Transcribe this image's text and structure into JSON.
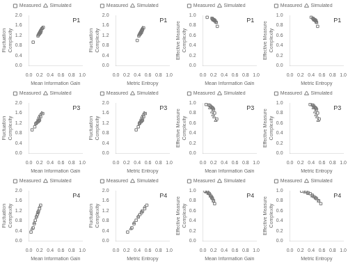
{
  "chart_data": [
    {
      "type": "scatter",
      "xlabel": "Mean Information Gain",
      "ylabel": "Fluctuation\nComplexity",
      "annotations": [
        "P1"
      ],
      "legend": "top",
      "grid": false,
      "xlim": [
        0,
        1
      ],
      "xticks": [
        {
          "value": 0,
          "label": "0.0"
        },
        0.2,
        0.4,
        0.6,
        0.8,
        {
          "value": 1,
          "label": "1.0"
        }
      ],
      "ylim": [
        0,
        2
      ],
      "yticks": [
        {
          "value": 0,
          "label": "0.0"
        },
        0.4,
        0.8,
        1.2,
        1.6,
        {
          "value": 2,
          "label": "2.0"
        }
      ],
      "series": [
        {
          "name": "Measured",
          "color": "#777777",
          "marker": "square",
          "x": [
            0.08,
            0.17,
            0.18,
            0.19,
            0.2,
            0.21,
            0.22,
            0.23,
            0.25,
            0.27
          ],
          "values": [
            0.93,
            1.18,
            1.22,
            1.25,
            1.27,
            1.3,
            1.32,
            1.38,
            1.48,
            1.52
          ]
        },
        {
          "name": "Simulated",
          "color": "#777777",
          "marker": "triangle",
          "x": [
            0.19,
            0.2,
            0.21,
            0.22,
            0.23,
            0.25
          ],
          "values": [
            1.3,
            1.35,
            1.38,
            1.42,
            1.45,
            1.5
          ]
        }
      ]
    },
    {
      "type": "scatter",
      "xlabel": "Metric Entropy",
      "ylabel": "Fluctuation\nComplexity",
      "annotations": [
        "P1"
      ],
      "legend": "top",
      "grid": false,
      "xlim": [
        0,
        1
      ],
      "xticks": [
        {
          "value": 0,
          "label": "0.0"
        },
        0.2,
        0.4,
        0.6,
        0.8,
        {
          "value": 1,
          "label": "1.0"
        }
      ],
      "ylim": [
        0,
        2
      ],
      "yticks": [
        {
          "value": 0,
          "label": "0.0"
        },
        0.4,
        0.8,
        1.2,
        1.6,
        {
          "value": 2,
          "label": "2.0"
        }
      ],
      "series": [
        {
          "name": "Measured",
          "color": "#777777",
          "marker": "square",
          "x": [
            0.4,
            0.43,
            0.44,
            0.45,
            0.46,
            0.47,
            0.48,
            0.49,
            0.5,
            0.52
          ],
          "values": [
            1.0,
            1.18,
            1.22,
            1.25,
            1.27,
            1.3,
            1.32,
            1.38,
            1.43,
            1.5
          ]
        },
        {
          "name": "Simulated",
          "color": "#777777",
          "marker": "triangle",
          "x": [
            0.45,
            0.46,
            0.47,
            0.48,
            0.49,
            0.5
          ],
          "values": [
            1.3,
            1.35,
            1.38,
            1.42,
            1.45,
            1.5
          ]
        }
      ]
    },
    {
      "type": "scatter",
      "xlabel": "Mean Information Gain",
      "ylabel": "Effective Measure\nComplexity",
      "annotations": [
        "P1"
      ],
      "legend": "top",
      "grid": false,
      "xlim": [
        0,
        1
      ],
      "xticks": [
        {
          "value": 0,
          "label": "0.0"
        },
        0.2,
        0.4,
        0.6,
        0.8,
        {
          "value": 1,
          "label": "1.0"
        }
      ],
      "ylim": [
        0,
        1
      ],
      "yticks": [
        {
          "value": 0,
          "label": "0.0"
        },
        0.2,
        0.4,
        0.6,
        0.8,
        {
          "value": 1,
          "label": "1.0"
        }
      ],
      "series": [
        {
          "name": "Measured",
          "color": "#777777",
          "marker": "square",
          "x": [
            0.08,
            0.17,
            0.18,
            0.19,
            0.2,
            0.21,
            0.22,
            0.23,
            0.25,
            0.27
          ],
          "values": [
            0.96,
            0.94,
            0.93,
            0.92,
            0.91,
            0.91,
            0.9,
            0.89,
            0.86,
            0.78
          ]
        },
        {
          "name": "Simulated",
          "color": "#777777",
          "marker": "triangle",
          "x": [
            0.19,
            0.2,
            0.21,
            0.22,
            0.23,
            0.25
          ],
          "values": [
            0.91,
            0.9,
            0.9,
            0.89,
            0.88,
            0.86
          ]
        }
      ]
    },
    {
      "type": "scatter",
      "xlabel": "Metric Entropy",
      "ylabel": "Effective Measure\nComplexity",
      "annotations": [
        "P1"
      ],
      "legend": "top",
      "grid": false,
      "xlim": [
        0,
        1
      ],
      "xticks": [
        {
          "value": 0,
          "label": "0.0"
        },
        0.2,
        0.4,
        0.6,
        0.8,
        {
          "value": 1,
          "label": "1.0"
        }
      ],
      "ylim": [
        0,
        1
      ],
      "yticks": [
        {
          "value": 0,
          "label": "0.0"
        },
        0.2,
        0.4,
        0.6,
        0.8,
        {
          "value": 1,
          "label": "1.0"
        }
      ],
      "series": [
        {
          "name": "Measured",
          "color": "#777777",
          "marker": "square",
          "x": [
            0.4,
            0.43,
            0.44,
            0.45,
            0.46,
            0.47,
            0.48,
            0.49,
            0.5,
            0.52
          ],
          "values": [
            0.96,
            0.94,
            0.93,
            0.92,
            0.91,
            0.91,
            0.9,
            0.89,
            0.86,
            0.78
          ]
        },
        {
          "name": "Simulated",
          "color": "#777777",
          "marker": "triangle",
          "x": [
            0.45,
            0.46,
            0.47,
            0.48,
            0.49,
            0.5
          ],
          "values": [
            0.91,
            0.9,
            0.9,
            0.89,
            0.88,
            0.86
          ]
        }
      ]
    },
    {
      "type": "scatter",
      "xlabel": "Mean Information Gain",
      "ylabel": "Fluctuation\nComplexity",
      "annotations": [
        "P3"
      ],
      "legend": "top",
      "grid": false,
      "xlim": [
        0,
        1
      ],
      "xticks": [
        {
          "value": 0,
          "label": "0.0"
        },
        0.2,
        0.4,
        0.6,
        0.8,
        {
          "value": 1,
          "label": "1.0"
        }
      ],
      "ylim": [
        0,
        2
      ],
      "yticks": [
        {
          "value": 0,
          "label": "0.0"
        },
        0.4,
        0.8,
        1.2,
        1.6,
        {
          "value": 2,
          "label": "2.0"
        }
      ],
      "series": [
        {
          "name": "Measured",
          "color": "#777777",
          "marker": "square",
          "x": [
            0.06,
            0.11,
            0.13,
            0.15,
            0.17,
            0.18,
            0.19,
            0.2,
            0.22,
            0.26
          ],
          "values": [
            0.93,
            1.05,
            1.18,
            1.22,
            1.25,
            1.28,
            1.3,
            1.32,
            1.45,
            1.58
          ]
        },
        {
          "name": "Simulated",
          "color": "#777777",
          "marker": "triangle",
          "x": [
            0.13,
            0.17,
            0.19,
            0.21,
            0.24
          ],
          "values": [
            1.18,
            1.35,
            1.45,
            1.52,
            1.6
          ]
        }
      ]
    },
    {
      "type": "scatter",
      "xlabel": "Metric Entropy",
      "ylabel": "Fluctuation\nComplexity",
      "annotations": [
        "P3"
      ],
      "legend": "top",
      "grid": false,
      "xlim": [
        0,
        1
      ],
      "xticks": [
        {
          "value": 0,
          "label": "0.0"
        },
        0.2,
        0.4,
        0.6,
        0.8,
        {
          "value": 1,
          "label": "1.0"
        }
      ],
      "ylim": [
        0,
        2
      ],
      "yticks": [
        {
          "value": 0,
          "label": "0.0"
        },
        0.4,
        0.8,
        1.2,
        1.6,
        {
          "value": 2,
          "label": "2.0"
        }
      ],
      "series": [
        {
          "name": "Measured",
          "color": "#777777",
          "marker": "square",
          "x": [
            0.38,
            0.42,
            0.44,
            0.45,
            0.47,
            0.48,
            0.49,
            0.5,
            0.52,
            0.55
          ],
          "values": [
            0.93,
            1.05,
            1.18,
            1.22,
            1.25,
            1.28,
            1.3,
            1.32,
            1.45,
            1.58
          ]
        },
        {
          "name": "Simulated",
          "color": "#777777",
          "marker": "triangle",
          "x": [
            0.44,
            0.47,
            0.49,
            0.51,
            0.53
          ],
          "values": [
            1.18,
            1.35,
            1.45,
            1.52,
            1.6
          ]
        }
      ]
    },
    {
      "type": "scatter",
      "xlabel": "Mean Information Gain",
      "ylabel": "Effective Measure\nComplexity",
      "annotations": [
        "P3"
      ],
      "legend": "top",
      "grid": false,
      "xlim": [
        0,
        1
      ],
      "xticks": [
        {
          "value": 0,
          "label": "0.0"
        },
        0.2,
        0.4,
        0.6,
        0.8,
        {
          "value": 1,
          "label": "1.0"
        }
      ],
      "ylim": [
        0,
        1
      ],
      "yticks": [
        {
          "value": 0,
          "label": "0.0"
        },
        0.2,
        0.4,
        0.6,
        0.8,
        {
          "value": 1,
          "label": "1.0"
        }
      ],
      "series": [
        {
          "name": "Measured",
          "color": "#777777",
          "marker": "square",
          "x": [
            0.06,
            0.11,
            0.13,
            0.15,
            0.17,
            0.18,
            0.19,
            0.2,
            0.22,
            0.26
          ],
          "values": [
            0.97,
            0.96,
            0.95,
            0.93,
            0.91,
            0.9,
            0.89,
            0.87,
            0.8,
            0.68
          ]
        },
        {
          "name": "Simulated",
          "color": "#777777",
          "marker": "triangle",
          "x": [
            0.13,
            0.17,
            0.19,
            0.21,
            0.24
          ],
          "values": [
            0.9,
            0.82,
            0.76,
            0.72,
            0.65
          ]
        }
      ]
    },
    {
      "type": "scatter",
      "xlabel": "Metric Entropy",
      "ylabel": "Effective Measure\nComplexity",
      "annotations": [
        "P3"
      ],
      "legend": "top",
      "grid": false,
      "xlim": [
        0,
        1
      ],
      "xticks": [
        {
          "value": 0,
          "label": "0.0"
        },
        0.2,
        0.4,
        0.6,
        0.8,
        {
          "value": 1,
          "label": "1.0"
        }
      ],
      "ylim": [
        0,
        1
      ],
      "yticks": [
        {
          "value": 0,
          "label": "0.0"
        },
        0.2,
        0.4,
        0.6,
        0.8,
        {
          "value": 1,
          "label": "1.0"
        }
      ],
      "series": [
        {
          "name": "Measured",
          "color": "#777777",
          "marker": "square",
          "x": [
            0.38,
            0.42,
            0.44,
            0.45,
            0.47,
            0.48,
            0.49,
            0.5,
            0.52,
            0.55
          ],
          "values": [
            0.97,
            0.96,
            0.95,
            0.93,
            0.91,
            0.9,
            0.89,
            0.87,
            0.8,
            0.68
          ]
        },
        {
          "name": "Simulated",
          "color": "#777777",
          "marker": "triangle",
          "x": [
            0.44,
            0.47,
            0.49,
            0.51,
            0.53
          ],
          "values": [
            0.9,
            0.82,
            0.76,
            0.72,
            0.65
          ]
        }
      ]
    },
    {
      "type": "scatter",
      "xlabel": "Mean Information Gain",
      "ylabel": "Fluctuation\nComplexity",
      "annotations": [
        "P4"
      ],
      "legend": "top",
      "grid": false,
      "xlim": [
        0,
        1
      ],
      "xticks": [
        {
          "value": 0,
          "label": "0.0"
        },
        0.2,
        0.4,
        0.6,
        0.8,
        {
          "value": 1,
          "label": "1.0"
        }
      ],
      "ylim": [
        0,
        2
      ],
      "yticks": [
        {
          "value": 0,
          "label": "0.0"
        },
        0.4,
        0.8,
        1.2,
        1.6,
        {
          "value": 2,
          "label": "2.0"
        }
      ],
      "series": [
        {
          "name": "Measured",
          "color": "#777777",
          "marker": "square",
          "x": [
            0.04,
            0.08,
            0.1,
            0.12,
            0.14,
            0.16,
            0.17,
            0.18,
            0.2,
            0.22
          ],
          "values": [
            0.35,
            0.52,
            0.68,
            0.82,
            0.95,
            1.05,
            1.12,
            1.18,
            1.28,
            1.42
          ]
        },
        {
          "name": "Simulated",
          "color": "#777777",
          "marker": "triangle",
          "x": [
            0.06,
            0.1,
            0.14,
            0.17,
            0.2
          ],
          "values": [
            0.48,
            0.72,
            0.98,
            1.18,
            1.35
          ]
        }
      ]
    },
    {
      "type": "scatter",
      "xlabel": "Metric Entropy",
      "ylabel": "Fluctuation\nComplexity",
      "annotations": [
        "P4"
      ],
      "legend": "top",
      "grid": false,
      "xlim": [
        0,
        1
      ],
      "xticks": [
        {
          "value": 0,
          "label": "0.0"
        },
        0.2,
        0.4,
        0.6,
        0.8,
        {
          "value": 1,
          "label": "1.0"
        }
      ],
      "ylim": [
        0,
        2
      ],
      "yticks": [
        {
          "value": 0,
          "label": "0.0"
        },
        0.4,
        0.8,
        1.2,
        1.6,
        {
          "value": 2,
          "label": "2.0"
        }
      ],
      "series": [
        {
          "name": "Measured",
          "color": "#777777",
          "marker": "square",
          "x": [
            0.22,
            0.3,
            0.34,
            0.38,
            0.42,
            0.45,
            0.48,
            0.5,
            0.54,
            0.58
          ],
          "values": [
            0.35,
            0.52,
            0.68,
            0.82,
            0.95,
            1.05,
            1.12,
            1.18,
            1.28,
            1.42
          ]
        },
        {
          "name": "Simulated",
          "color": "#777777",
          "marker": "triangle",
          "x": [
            0.28,
            0.34,
            0.42,
            0.48,
            0.54
          ],
          "values": [
            0.48,
            0.72,
            0.98,
            1.18,
            1.35
          ]
        }
      ]
    },
    {
      "type": "scatter",
      "xlabel": "Mean Information Gain",
      "ylabel": "Effective Measure\nComplexity",
      "annotations": [
        "P4"
      ],
      "legend": "top",
      "grid": false,
      "xlim": [
        0,
        1
      ],
      "xticks": [
        {
          "value": 0,
          "label": "0.0"
        },
        0.2,
        0.4,
        0.6,
        0.8,
        {
          "value": 1,
          "label": "1.0"
        }
      ],
      "ylim": [
        0,
        1
      ],
      "yticks": [
        {
          "value": 0,
          "label": "0.0"
        },
        0.2,
        0.4,
        0.6,
        0.8,
        {
          "value": 1,
          "label": "1.0"
        }
      ],
      "series": [
        {
          "name": "Measured",
          "color": "#777777",
          "marker": "square",
          "x": [
            0.04,
            0.08,
            0.1,
            0.12,
            0.14,
            0.16,
            0.17,
            0.18,
            0.2,
            0.22
          ],
          "values": [
            0.99,
            0.98,
            0.96,
            0.94,
            0.91,
            0.88,
            0.86,
            0.84,
            0.8,
            0.74
          ]
        },
        {
          "name": "Simulated",
          "color": "#777777",
          "marker": "triangle",
          "x": [
            0.06,
            0.1,
            0.14,
            0.17,
            0.2
          ],
          "values": [
            0.97,
            0.94,
            0.89,
            0.85,
            0.79
          ]
        }
      ]
    },
    {
      "type": "scatter",
      "xlabel": "Metric Entropy",
      "ylabel": "Effective Measure\nComplexity",
      "annotations": [
        "P4"
      ],
      "legend": "top",
      "grid": false,
      "xlim": [
        0,
        1
      ],
      "xticks": [
        {
          "value": 0,
          "label": "0.0"
        },
        0.2,
        0.4,
        0.6,
        0.8,
        {
          "value": 1,
          "label": "1.0"
        }
      ],
      "ylim": [
        0,
        1
      ],
      "yticks": [
        {
          "value": 0,
          "label": "0.0"
        },
        0.2,
        0.4,
        0.6,
        0.8,
        {
          "value": 1,
          "label": "1.0"
        }
      ],
      "series": [
        {
          "name": "Measured",
          "color": "#777777",
          "marker": "square",
          "x": [
            0.22,
            0.3,
            0.34,
            0.38,
            0.42,
            0.45,
            0.48,
            0.5,
            0.54,
            0.58
          ],
          "values": [
            0.99,
            0.98,
            0.96,
            0.94,
            0.91,
            0.88,
            0.86,
            0.84,
            0.8,
            0.74
          ]
        },
        {
          "name": "Simulated",
          "color": "#777777",
          "marker": "triangle",
          "x": [
            0.28,
            0.34,
            0.42,
            0.48,
            0.54
          ],
          "values": [
            0.97,
            0.94,
            0.89,
            0.85,
            0.79
          ]
        }
      ]
    }
  ]
}
